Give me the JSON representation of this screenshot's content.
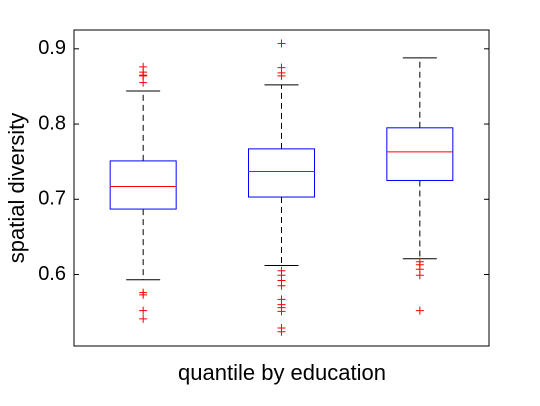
{
  "chart_data": {
    "type": "box",
    "x_label": "quantile by education",
    "y_label": "spatial diversity",
    "categories": [
      null,
      null,
      null
    ],
    "boxes": [
      {
        "min": 0.593,
        "q1": 0.687,
        "median": 0.717,
        "q3": 0.751,
        "max": 0.844,
        "outliers": [
          0.876,
          0.869,
          0.865,
          0.864,
          0.855,
          0.576,
          0.573,
          0.552,
          0.541
        ]
      },
      {
        "min": 0.612,
        "q1": 0.703,
        "median": 0.737,
        "q3": 0.767,
        "max": 0.852,
        "outliers": [
          0.907,
          0.875,
          0.868,
          0.864,
          0.605,
          0.599,
          0.592,
          0.585,
          0.567,
          0.56,
          0.556,
          0.551,
          0.529,
          0.524
        ]
      },
      {
        "min": 0.621,
        "q1": 0.725,
        "median": 0.763,
        "q3": 0.795,
        "max": 0.888,
        "outliers": [
          0.617,
          0.613,
          0.607,
          0.599,
          0.552
        ]
      }
    ],
    "box_color": "#0000ff",
    "median_color": "#ff0000",
    "whisker_color": "#000000",
    "outlier_color": "#ff0000",
    "ylim": [
      0.505,
      0.925
    ],
    "yticks": [
      0.6,
      0.7,
      0.8,
      0.9
    ]
  }
}
